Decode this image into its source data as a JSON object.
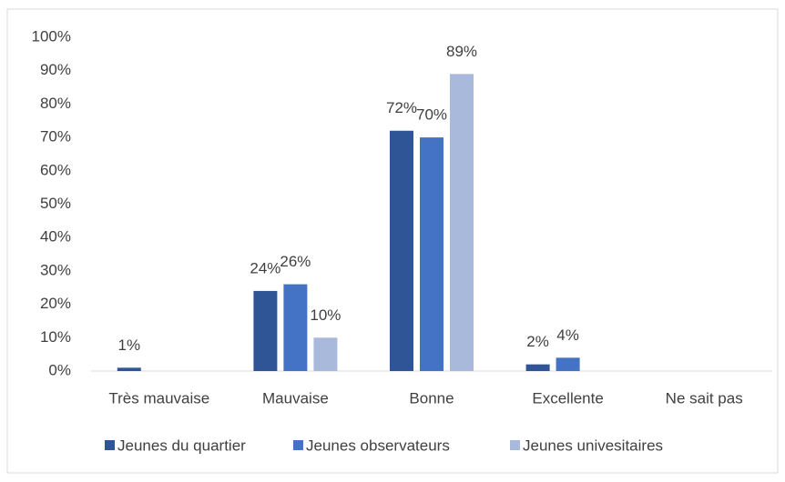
{
  "chart_data": {
    "type": "bar",
    "categories": [
      "Très mauvaise",
      "Mauvaise",
      "Bonne",
      "Excellente",
      "Ne sait pas"
    ],
    "series": [
      {
        "name": "Jeunes du quartier",
        "color": "#2f5597",
        "values": [
          1,
          24,
          72,
          2,
          null
        ],
        "value_labels": [
          "1%",
          "24%",
          "72%",
          "2%",
          null
        ]
      },
      {
        "name": "Jeunes observateurs",
        "color": "#4472c4",
        "values": [
          null,
          26,
          70,
          4,
          null
        ],
        "value_labels": [
          null,
          "26%",
          "70%",
          "4%",
          null
        ]
      },
      {
        "name": "Jeunes univesitaires",
        "color": "#a9b9dc",
        "values": [
          null,
          10,
          89,
          null,
          null
        ],
        "value_labels": [
          null,
          "10%",
          "89%",
          null,
          null
        ]
      }
    ],
    "ylim": [
      0,
      100
    ],
    "yticks": [
      {
        "value": 0,
        "label": "0%"
      },
      {
        "value": 10,
        "label": "10%"
      },
      {
        "value": 20,
        "label": "20%"
      },
      {
        "value": 30,
        "label": "30%"
      },
      {
        "value": 40,
        "label": "40%"
      },
      {
        "value": 50,
        "label": "50%"
      },
      {
        "value": 60,
        "label": "60%"
      },
      {
        "value": 70,
        "label": "70%"
      },
      {
        "value": 80,
        "label": "80%"
      },
      {
        "value": 90,
        "label": "90%"
      },
      {
        "value": 100,
        "label": "100%"
      }
    ],
    "grid": false,
    "legend": "bottom"
  }
}
